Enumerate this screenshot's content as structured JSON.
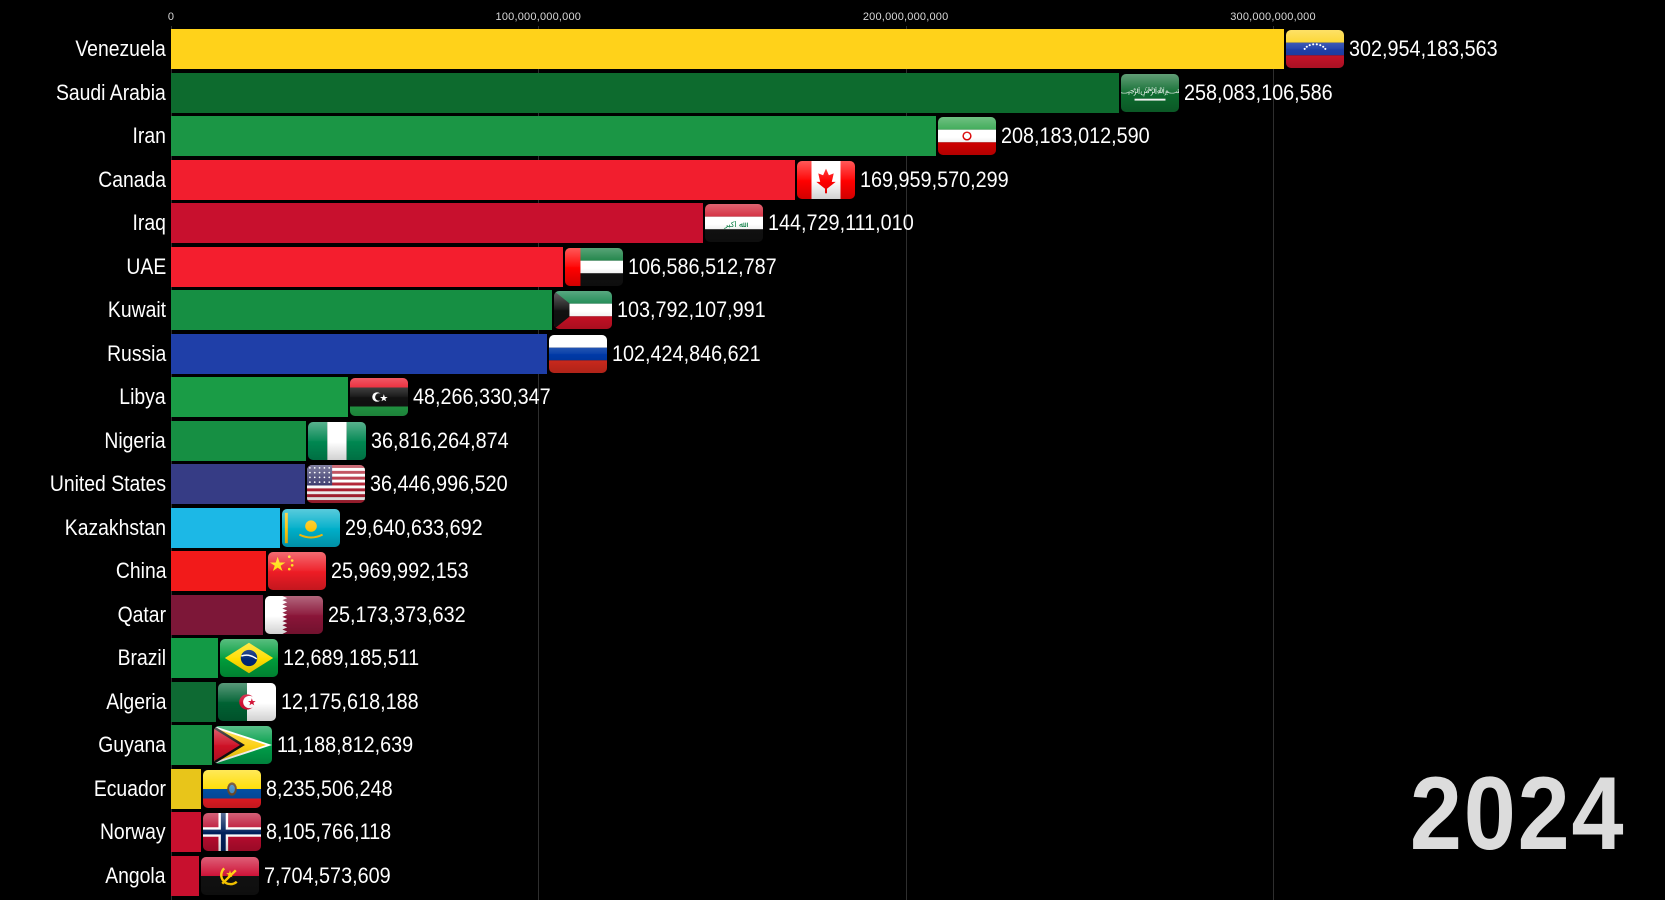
{
  "chart_data": {
    "type": "bar",
    "orientation": "horizontal",
    "title": "",
    "xlabel": "",
    "ylabel": "",
    "xlim": [
      0,
      350000000000
    ],
    "ticks": [
      {
        "value": 0,
        "label": "0"
      },
      {
        "value": 100000000000,
        "label": "100,000,000,000"
      },
      {
        "value": 200000000000,
        "label": "200,000,000,000"
      },
      {
        "value": 300000000000,
        "label": "300,000,000,000"
      }
    ],
    "year": "2024",
    "grid": true,
    "bars": [
      {
        "category": "Venezuela",
        "value": 302954183563,
        "label": "302,954,183,563",
        "color": "#FFD21A",
        "flag": "venezuela"
      },
      {
        "category": "Saudi Arabia",
        "value": 258083106586,
        "label": "258,083,106,586",
        "color": "#0D6B2E",
        "flag": "saudi-arabia"
      },
      {
        "category": "Iran",
        "value": 208183012590,
        "label": "208,183,012,590",
        "color": "#1B9645",
        "flag": "iran"
      },
      {
        "category": "Canada",
        "value": 169959570299,
        "label": "169,959,570,299",
        "color": "#F21E2E",
        "flag": "canada"
      },
      {
        "category": "Iraq",
        "value": 144729111010,
        "label": "144,729,111,010",
        "color": "#C8102E",
        "flag": "iraq"
      },
      {
        "category": "UAE",
        "value": 106586512787,
        "label": "106,586,512,787",
        "color": "#F41E2E",
        "flag": "uae"
      },
      {
        "category": "Kuwait",
        "value": 103792107991,
        "label": "103,792,107,991",
        "color": "#168F43",
        "flag": "kuwait"
      },
      {
        "category": "Russia",
        "value": 102424846621,
        "label": "102,424,846,621",
        "color": "#1F3FA8",
        "flag": "russia"
      },
      {
        "category": "Libya",
        "value": 48266330347,
        "label": "48,266,330,347",
        "color": "#1A9C46",
        "flag": "libya"
      },
      {
        "category": "Nigeria",
        "value": 36816264874,
        "label": "36,816,264,874",
        "color": "#168F43",
        "flag": "nigeria"
      },
      {
        "category": "United States",
        "value": 36446996520,
        "label": "36,446,996,520",
        "color": "#363C85",
        "flag": "united-states"
      },
      {
        "category": "Kazakhstan",
        "value": 29640633692,
        "label": "29,640,633,692",
        "color": "#1CB8E6",
        "flag": "kazakhstan"
      },
      {
        "category": "China",
        "value": 25969992153,
        "label": "25,969,992,153",
        "color": "#F21A1A",
        "flag": "china"
      },
      {
        "category": "Qatar",
        "value": 25173373632,
        "label": "25,173,373,632",
        "color": "#7D1738",
        "flag": "qatar"
      },
      {
        "category": "Brazil",
        "value": 12689185511,
        "label": "12,689,185,511",
        "color": "#129A45",
        "flag": "brazil"
      },
      {
        "category": "Algeria",
        "value": 12175618188,
        "label": "12,175,618,188",
        "color": "#0E6A33",
        "flag": "algeria"
      },
      {
        "category": "Guyana",
        "value": 11188812639,
        "label": "11,188,812,639",
        "color": "#168F43",
        "flag": "guyana"
      },
      {
        "category": "Ecuador",
        "value": 8235506248,
        "label": "8,235,506,248",
        "color": "#E8C51A",
        "flag": "ecuador"
      },
      {
        "category": "Norway",
        "value": 8105766118,
        "label": "8,105,766,118",
        "color": "#C8102E",
        "flag": "norway"
      },
      {
        "category": "Angola",
        "value": 7704573609,
        "label": "7,704,573,609",
        "color": "#C8102E",
        "flag": "angola"
      }
    ]
  }
}
